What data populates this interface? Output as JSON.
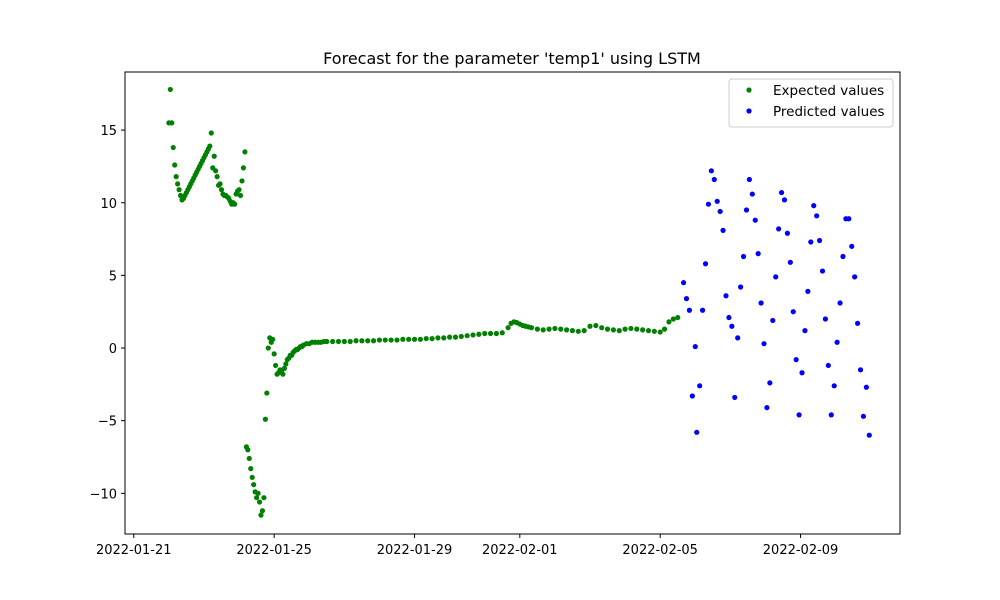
{
  "chart_data": {
    "type": "scatter",
    "title": "Forecast for the parameter 'temp1' using LSTM",
    "xlabel": "",
    "ylabel": "",
    "xlim": [
      "2022-01-20T18:00",
      "2022-02-11T20:00"
    ],
    "ylim": [
      -12.8,
      19.0
    ],
    "x_ticks": [
      "2022-01-21",
      "2022-01-25",
      "2022-01-29",
      "2022-02-01",
      "2022-02-05",
      "2022-02-09"
    ],
    "y_ticks": [
      -10,
      -5,
      0,
      5,
      10,
      15
    ],
    "grid": false,
    "legend_position": "top-right",
    "series": [
      {
        "name": "Expected values",
        "color": "#008000",
        "points": [
          [
            "2022-01-22T00:00",
            15.5
          ],
          [
            "2022-01-22T01:00",
            17.8
          ],
          [
            "2022-01-22T02:00",
            15.5
          ],
          [
            "2022-01-22T03:00",
            13.8
          ],
          [
            "2022-01-22T04:00",
            12.6
          ],
          [
            "2022-01-22T05:00",
            11.8
          ],
          [
            "2022-01-22T06:00",
            11.3
          ],
          [
            "2022-01-22T07:00",
            10.9
          ],
          [
            "2022-01-22T08:00",
            10.5
          ],
          [
            "2022-01-22T09:00",
            10.2
          ],
          [
            "2022-01-22T10:00",
            10.3
          ],
          [
            "2022-01-22T11:00",
            10.5
          ],
          [
            "2022-01-22T12:00",
            10.7
          ],
          [
            "2022-01-22T13:00",
            10.9
          ],
          [
            "2022-01-22T14:00",
            11.1
          ],
          [
            "2022-01-22T15:00",
            11.3
          ],
          [
            "2022-01-22T16:00",
            11.5
          ],
          [
            "2022-01-22T17:00",
            11.7
          ],
          [
            "2022-01-22T18:00",
            11.9
          ],
          [
            "2022-01-22T19:00",
            12.1
          ],
          [
            "2022-01-22T20:00",
            12.3
          ],
          [
            "2022-01-22T21:00",
            12.5
          ],
          [
            "2022-01-22T22:00",
            12.7
          ],
          [
            "2022-01-22T23:00",
            12.9
          ],
          [
            "2022-01-23T00:00",
            13.1
          ],
          [
            "2022-01-23T01:00",
            13.3
          ],
          [
            "2022-01-23T02:00",
            13.5
          ],
          [
            "2022-01-23T03:00",
            13.7
          ],
          [
            "2022-01-23T04:00",
            13.9
          ],
          [
            "2022-01-23T05:00",
            14.8
          ],
          [
            "2022-01-23T06:00",
            12.4
          ],
          [
            "2022-01-23T07:00",
            13.2
          ],
          [
            "2022-01-23T08:00",
            12.2
          ],
          [
            "2022-01-23T09:00",
            11.8
          ],
          [
            "2022-01-23T10:00",
            11.2
          ],
          [
            "2022-01-23T11:00",
            11.3
          ],
          [
            "2022-01-23T12:00",
            10.9
          ],
          [
            "2022-01-23T13:00",
            10.6
          ],
          [
            "2022-01-23T14:00",
            10.5
          ],
          [
            "2022-01-23T15:00",
            10.5
          ],
          [
            "2022-01-23T16:00",
            10.4
          ],
          [
            "2022-01-23T17:00",
            10.3
          ],
          [
            "2022-01-23T18:00",
            10.1
          ],
          [
            "2022-01-23T19:00",
            9.9
          ],
          [
            "2022-01-23T20:00",
            10.0
          ],
          [
            "2022-01-23T21:00",
            9.9
          ],
          [
            "2022-01-23T22:00",
            10.6
          ],
          [
            "2022-01-23T23:00",
            10.8
          ],
          [
            "2022-01-24T00:00",
            10.9
          ],
          [
            "2022-01-24T01:00",
            10.5
          ],
          [
            "2022-01-24T02:00",
            11.5
          ],
          [
            "2022-01-24T03:00",
            12.4
          ],
          [
            "2022-01-24T04:00",
            13.5
          ],
          [
            "2022-01-24T05:00",
            -6.8
          ],
          [
            "2022-01-24T06:00",
            -7.0
          ],
          [
            "2022-01-24T07:00",
            -7.6
          ],
          [
            "2022-01-24T08:00",
            -8.3
          ],
          [
            "2022-01-24T09:00",
            -8.9
          ],
          [
            "2022-01-24T10:00",
            -9.4
          ],
          [
            "2022-01-24T11:00",
            -9.9
          ],
          [
            "2022-01-24T12:00",
            -10.3
          ],
          [
            "2022-01-24T13:00",
            -10.0
          ],
          [
            "2022-01-24T14:00",
            -10.6
          ],
          [
            "2022-01-24T15:00",
            -11.5
          ],
          [
            "2022-01-24T16:00",
            -11.2
          ],
          [
            "2022-01-24T17:00",
            -10.3
          ],
          [
            "2022-01-24T18:00",
            -4.9
          ],
          [
            "2022-01-24T19:00",
            -3.1
          ],
          [
            "2022-01-24T20:00",
            0.0
          ],
          [
            "2022-01-24T21:00",
            0.7
          ],
          [
            "2022-01-24T22:00",
            0.4
          ],
          [
            "2022-01-24T23:00",
            0.6
          ],
          [
            "2022-01-25T00:00",
            -0.4
          ],
          [
            "2022-01-25T01:00",
            -1.2
          ],
          [
            "2022-01-25T02:00",
            -1.8
          ],
          [
            "2022-01-25T03:00",
            -1.7
          ],
          [
            "2022-01-25T04:00",
            -1.5
          ],
          [
            "2022-01-25T05:00",
            -1.6
          ],
          [
            "2022-01-25T06:00",
            -1.8
          ],
          [
            "2022-01-25T07:00",
            -1.4
          ],
          [
            "2022-01-25T08:00",
            -1.1
          ],
          [
            "2022-01-25T09:00",
            -0.8
          ],
          [
            "2022-01-25T10:00",
            -0.7
          ],
          [
            "2022-01-25T11:00",
            -0.5
          ],
          [
            "2022-01-25T12:00",
            -0.5
          ],
          [
            "2022-01-25T13:00",
            -0.3
          ],
          [
            "2022-01-25T14:00",
            -0.2
          ],
          [
            "2022-01-25T15:00",
            -0.1
          ],
          [
            "2022-01-25T16:00",
            -0.1
          ],
          [
            "2022-01-25T17:00",
            0.0
          ],
          [
            "2022-01-25T18:00",
            0.1
          ],
          [
            "2022-01-25T19:00",
            0.1
          ],
          [
            "2022-01-25T20:00",
            0.2
          ],
          [
            "2022-01-25T22:00",
            0.3
          ],
          [
            "2022-01-26T00:00",
            0.3
          ],
          [
            "2022-01-26T02:00",
            0.4
          ],
          [
            "2022-01-26T04:00",
            0.4
          ],
          [
            "2022-01-26T06:00",
            0.4
          ],
          [
            "2022-01-26T08:00",
            0.4
          ],
          [
            "2022-01-26T10:00",
            0.45
          ],
          [
            "2022-01-26T12:00",
            0.45
          ],
          [
            "2022-01-26T16:00",
            0.45
          ],
          [
            "2022-01-26T20:00",
            0.45
          ],
          [
            "2022-01-27T00:00",
            0.45
          ],
          [
            "2022-01-27T04:00",
            0.45
          ],
          [
            "2022-01-27T08:00",
            0.5
          ],
          [
            "2022-01-27T12:00",
            0.5
          ],
          [
            "2022-01-27T16:00",
            0.5
          ],
          [
            "2022-01-27T20:00",
            0.5
          ],
          [
            "2022-01-28T00:00",
            0.55
          ],
          [
            "2022-01-28T04:00",
            0.55
          ],
          [
            "2022-01-28T08:00",
            0.55
          ],
          [
            "2022-01-28T12:00",
            0.55
          ],
          [
            "2022-01-28T16:00",
            0.6
          ],
          [
            "2022-01-28T20:00",
            0.6
          ],
          [
            "2022-01-29T00:00",
            0.6
          ],
          [
            "2022-01-29T04:00",
            0.6
          ],
          [
            "2022-01-29T08:00",
            0.65
          ],
          [
            "2022-01-29T12:00",
            0.65
          ],
          [
            "2022-01-29T16:00",
            0.7
          ],
          [
            "2022-01-29T20:00",
            0.7
          ],
          [
            "2022-01-30T00:00",
            0.75
          ],
          [
            "2022-01-30T04:00",
            0.75
          ],
          [
            "2022-01-30T08:00",
            0.8
          ],
          [
            "2022-01-30T12:00",
            0.85
          ],
          [
            "2022-01-30T16:00",
            0.9
          ],
          [
            "2022-01-30T20:00",
            0.95
          ],
          [
            "2022-01-31T00:00",
            1.0
          ],
          [
            "2022-01-31T04:00",
            1.0
          ],
          [
            "2022-01-31T08:00",
            1.0
          ],
          [
            "2022-01-31T12:00",
            1.05
          ],
          [
            "2022-01-31T16:00",
            1.4
          ],
          [
            "2022-01-31T18:00",
            1.7
          ],
          [
            "2022-01-31T20:00",
            1.8
          ],
          [
            "2022-01-31T22:00",
            1.75
          ],
          [
            "2022-02-01T00:00",
            1.65
          ],
          [
            "2022-02-01T02:00",
            1.55
          ],
          [
            "2022-02-01T04:00",
            1.5
          ],
          [
            "2022-02-01T06:00",
            1.45
          ],
          [
            "2022-02-01T08:00",
            1.4
          ],
          [
            "2022-02-01T12:00",
            1.3
          ],
          [
            "2022-02-01T16:00",
            1.25
          ],
          [
            "2022-02-01T20:00",
            1.3
          ],
          [
            "2022-02-02T00:00",
            1.35
          ],
          [
            "2022-02-02T04:00",
            1.3
          ],
          [
            "2022-02-02T08:00",
            1.25
          ],
          [
            "2022-02-02T12:00",
            1.2
          ],
          [
            "2022-02-02T16:00",
            1.15
          ],
          [
            "2022-02-02T20:00",
            1.2
          ],
          [
            "2022-02-03T00:00",
            1.5
          ],
          [
            "2022-02-03T04:00",
            1.55
          ],
          [
            "2022-02-03T08:00",
            1.4
          ],
          [
            "2022-02-03T12:00",
            1.3
          ],
          [
            "2022-02-03T16:00",
            1.25
          ],
          [
            "2022-02-03T20:00",
            1.2
          ],
          [
            "2022-02-04T00:00",
            1.3
          ],
          [
            "2022-02-04T04:00",
            1.35
          ],
          [
            "2022-02-04T08:00",
            1.3
          ],
          [
            "2022-02-04T12:00",
            1.25
          ],
          [
            "2022-02-04T16:00",
            1.2
          ],
          [
            "2022-02-04T20:00",
            1.15
          ],
          [
            "2022-02-05T00:00",
            1.1
          ],
          [
            "2022-02-05T03:00",
            1.3
          ],
          [
            "2022-02-05T06:00",
            1.8
          ],
          [
            "2022-02-05T09:00",
            2.0
          ],
          [
            "2022-02-05T12:00",
            2.1
          ]
        ]
      },
      {
        "name": "Predicted values",
        "color": "#0000ff",
        "points": [
          [
            "2022-02-05T16:00",
            4.5
          ],
          [
            "2022-02-05T18:00",
            3.4
          ],
          [
            "2022-02-05T20:00",
            2.6
          ],
          [
            "2022-02-05T22:00",
            -3.3
          ],
          [
            "2022-02-06T00:00",
            0.1
          ],
          [
            "2022-02-06T01:00",
            -5.8
          ],
          [
            "2022-02-06T03:00",
            -2.6
          ],
          [
            "2022-02-06T05:00",
            2.6
          ],
          [
            "2022-02-06T07:00",
            5.8
          ],
          [
            "2022-02-06T09:00",
            9.9
          ],
          [
            "2022-02-06T11:00",
            12.2
          ],
          [
            "2022-02-06T13:00",
            11.6
          ],
          [
            "2022-02-06T15:00",
            10.1
          ],
          [
            "2022-02-06T17:00",
            9.4
          ],
          [
            "2022-02-06T19:00",
            8.1
          ],
          [
            "2022-02-06T21:00",
            3.6
          ],
          [
            "2022-02-06T23:00",
            2.1
          ],
          [
            "2022-02-07T01:00",
            1.5
          ],
          [
            "2022-02-07T03:00",
            -3.4
          ],
          [
            "2022-02-07T05:00",
            0.7
          ],
          [
            "2022-02-07T07:00",
            4.2
          ],
          [
            "2022-02-07T09:00",
            6.3
          ],
          [
            "2022-02-07T11:00",
            9.5
          ],
          [
            "2022-02-07T13:00",
            11.6
          ],
          [
            "2022-02-07T15:00",
            10.6
          ],
          [
            "2022-02-07T17:00",
            8.8
          ],
          [
            "2022-02-07T19:00",
            6.5
          ],
          [
            "2022-02-07T21:00",
            3.1
          ],
          [
            "2022-02-07T23:00",
            0.3
          ],
          [
            "2022-02-08T01:00",
            -4.1
          ],
          [
            "2022-02-08T03:00",
            -2.4
          ],
          [
            "2022-02-08T05:00",
            1.9
          ],
          [
            "2022-02-08T07:00",
            4.9
          ],
          [
            "2022-02-08T09:00",
            8.2
          ],
          [
            "2022-02-08T11:00",
            10.7
          ],
          [
            "2022-02-08T13:00",
            10.2
          ],
          [
            "2022-02-08T15:00",
            7.9
          ],
          [
            "2022-02-08T17:00",
            5.9
          ],
          [
            "2022-02-08T19:00",
            2.5
          ],
          [
            "2022-02-08T21:00",
            -0.8
          ],
          [
            "2022-02-08T23:00",
            -4.6
          ],
          [
            "2022-02-09T01:00",
            -1.7
          ],
          [
            "2022-02-09T03:00",
            1.2
          ],
          [
            "2022-02-09T05:00",
            3.9
          ],
          [
            "2022-02-09T07:00",
            7.3
          ],
          [
            "2022-02-09T09:00",
            9.8
          ],
          [
            "2022-02-09T11:00",
            9.1
          ],
          [
            "2022-02-09T13:00",
            7.4
          ],
          [
            "2022-02-09T15:00",
            5.3
          ],
          [
            "2022-02-09T17:00",
            2.0
          ],
          [
            "2022-02-09T19:00",
            -1.2
          ],
          [
            "2022-02-09T21:00",
            -4.6
          ],
          [
            "2022-02-09T23:00",
            -2.6
          ],
          [
            "2022-02-10T01:00",
            0.4
          ],
          [
            "2022-02-10T03:00",
            3.1
          ],
          [
            "2022-02-10T05:00",
            6.3
          ],
          [
            "2022-02-10T07:00",
            8.9
          ],
          [
            "2022-02-10T09:00",
            8.9
          ],
          [
            "2022-02-10T11:00",
            7.0
          ],
          [
            "2022-02-10T13:00",
            4.9
          ],
          [
            "2022-02-10T15:00",
            1.7
          ],
          [
            "2022-02-10T17:00",
            -1.5
          ],
          [
            "2022-02-10T19:00",
            -4.7
          ],
          [
            "2022-02-10T21:00",
            -2.7
          ],
          [
            "2022-02-10T23:00",
            -6.0
          ]
        ]
      }
    ]
  }
}
